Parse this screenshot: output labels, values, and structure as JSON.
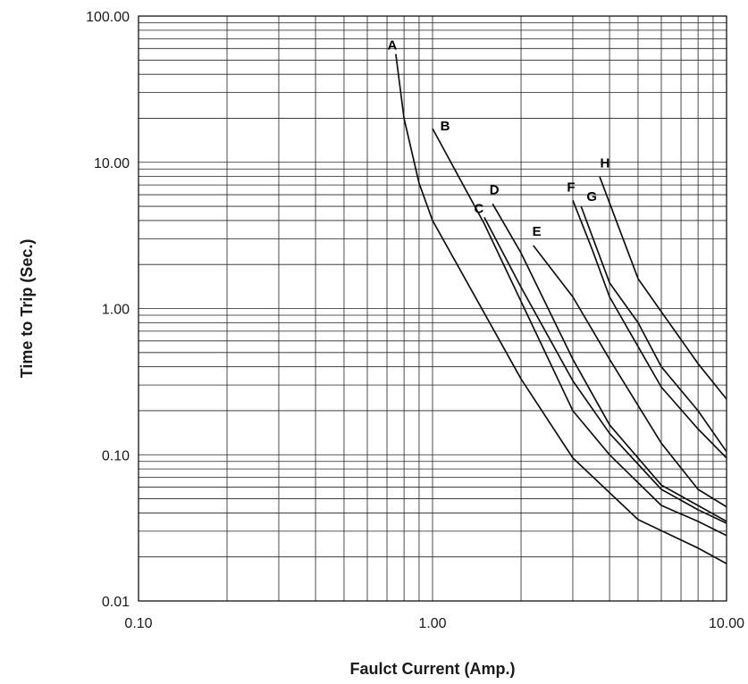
{
  "chart_data": {
    "type": "line",
    "title": "",
    "xlabel": "Faulct Current (Amp.)",
    "ylabel": "Time to Trip (Sec.)",
    "xscale": "log",
    "yscale": "log",
    "xlim": [
      0.1,
      10
    ],
    "ylim": [
      0.01,
      100
    ],
    "grid": true,
    "x_ticks": [
      {
        "value": 0.1,
        "label": "0.10"
      },
      {
        "value": 1,
        "label": "1.00"
      },
      {
        "value": 10,
        "label": "10.00"
      }
    ],
    "y_ticks": [
      {
        "value": 0.01,
        "label": "0.01"
      },
      {
        "value": 0.1,
        "label": "0.10"
      },
      {
        "value": 1,
        "label": "1.00"
      },
      {
        "value": 10,
        "label": "10.00"
      },
      {
        "value": 100,
        "label": "100.00"
      }
    ],
    "series": [
      {
        "name": "A",
        "points": [
          [
            0.75,
            55
          ],
          [
            0.8,
            20
          ],
          [
            0.9,
            7.2
          ],
          [
            1.0,
            4.0
          ],
          [
            2.0,
            0.33
          ],
          [
            3.0,
            0.095
          ],
          [
            5.0,
            0.036
          ],
          [
            8.0,
            0.023
          ],
          [
            10.0,
            0.018
          ]
        ]
      },
      {
        "name": "B",
        "points": [
          [
            1.0,
            17
          ],
          [
            1.5,
            3.8
          ],
          [
            3.0,
            0.2
          ],
          [
            4.0,
            0.1
          ],
          [
            6.0,
            0.045
          ],
          [
            8.0,
            0.035
          ],
          [
            10.0,
            0.028
          ]
        ]
      },
      {
        "name": "C",
        "points": [
          [
            1.5,
            4.2
          ],
          [
            2.0,
            1.4
          ],
          [
            3.0,
            0.32
          ],
          [
            4.0,
            0.14
          ],
          [
            6.0,
            0.058
          ],
          [
            8.0,
            0.042
          ],
          [
            10.0,
            0.034
          ]
        ]
      },
      {
        "name": "D",
        "points": [
          [
            1.6,
            5.2
          ],
          [
            2.0,
            2.4
          ],
          [
            3.0,
            0.45
          ],
          [
            4.0,
            0.16
          ],
          [
            6.0,
            0.062
          ],
          [
            10.0,
            0.035
          ]
        ]
      },
      {
        "name": "E",
        "points": [
          [
            2.2,
            2.7
          ],
          [
            3.0,
            1.2
          ],
          [
            4.0,
            0.45
          ],
          [
            6.0,
            0.12
          ],
          [
            8.0,
            0.058
          ],
          [
            10.0,
            0.044
          ]
        ]
      },
      {
        "name": "F",
        "points": [
          [
            3.0,
            5.5
          ],
          [
            3.5,
            2.5
          ],
          [
            4.0,
            1.2
          ],
          [
            6.0,
            0.29
          ],
          [
            8.0,
            0.15
          ],
          [
            10.0,
            0.095
          ]
        ]
      },
      {
        "name": "G",
        "points": [
          [
            3.2,
            5.0
          ],
          [
            4.0,
            1.5
          ],
          [
            5.0,
            0.8
          ],
          [
            6.0,
            0.4
          ],
          [
            8.0,
            0.2
          ],
          [
            10.0,
            0.105
          ]
        ]
      },
      {
        "name": "H",
        "points": [
          [
            3.7,
            8.0
          ],
          [
            5.0,
            1.6
          ],
          [
            6.0,
            0.95
          ],
          [
            8.0,
            0.42
          ],
          [
            10.0,
            0.24
          ]
        ]
      }
    ]
  }
}
